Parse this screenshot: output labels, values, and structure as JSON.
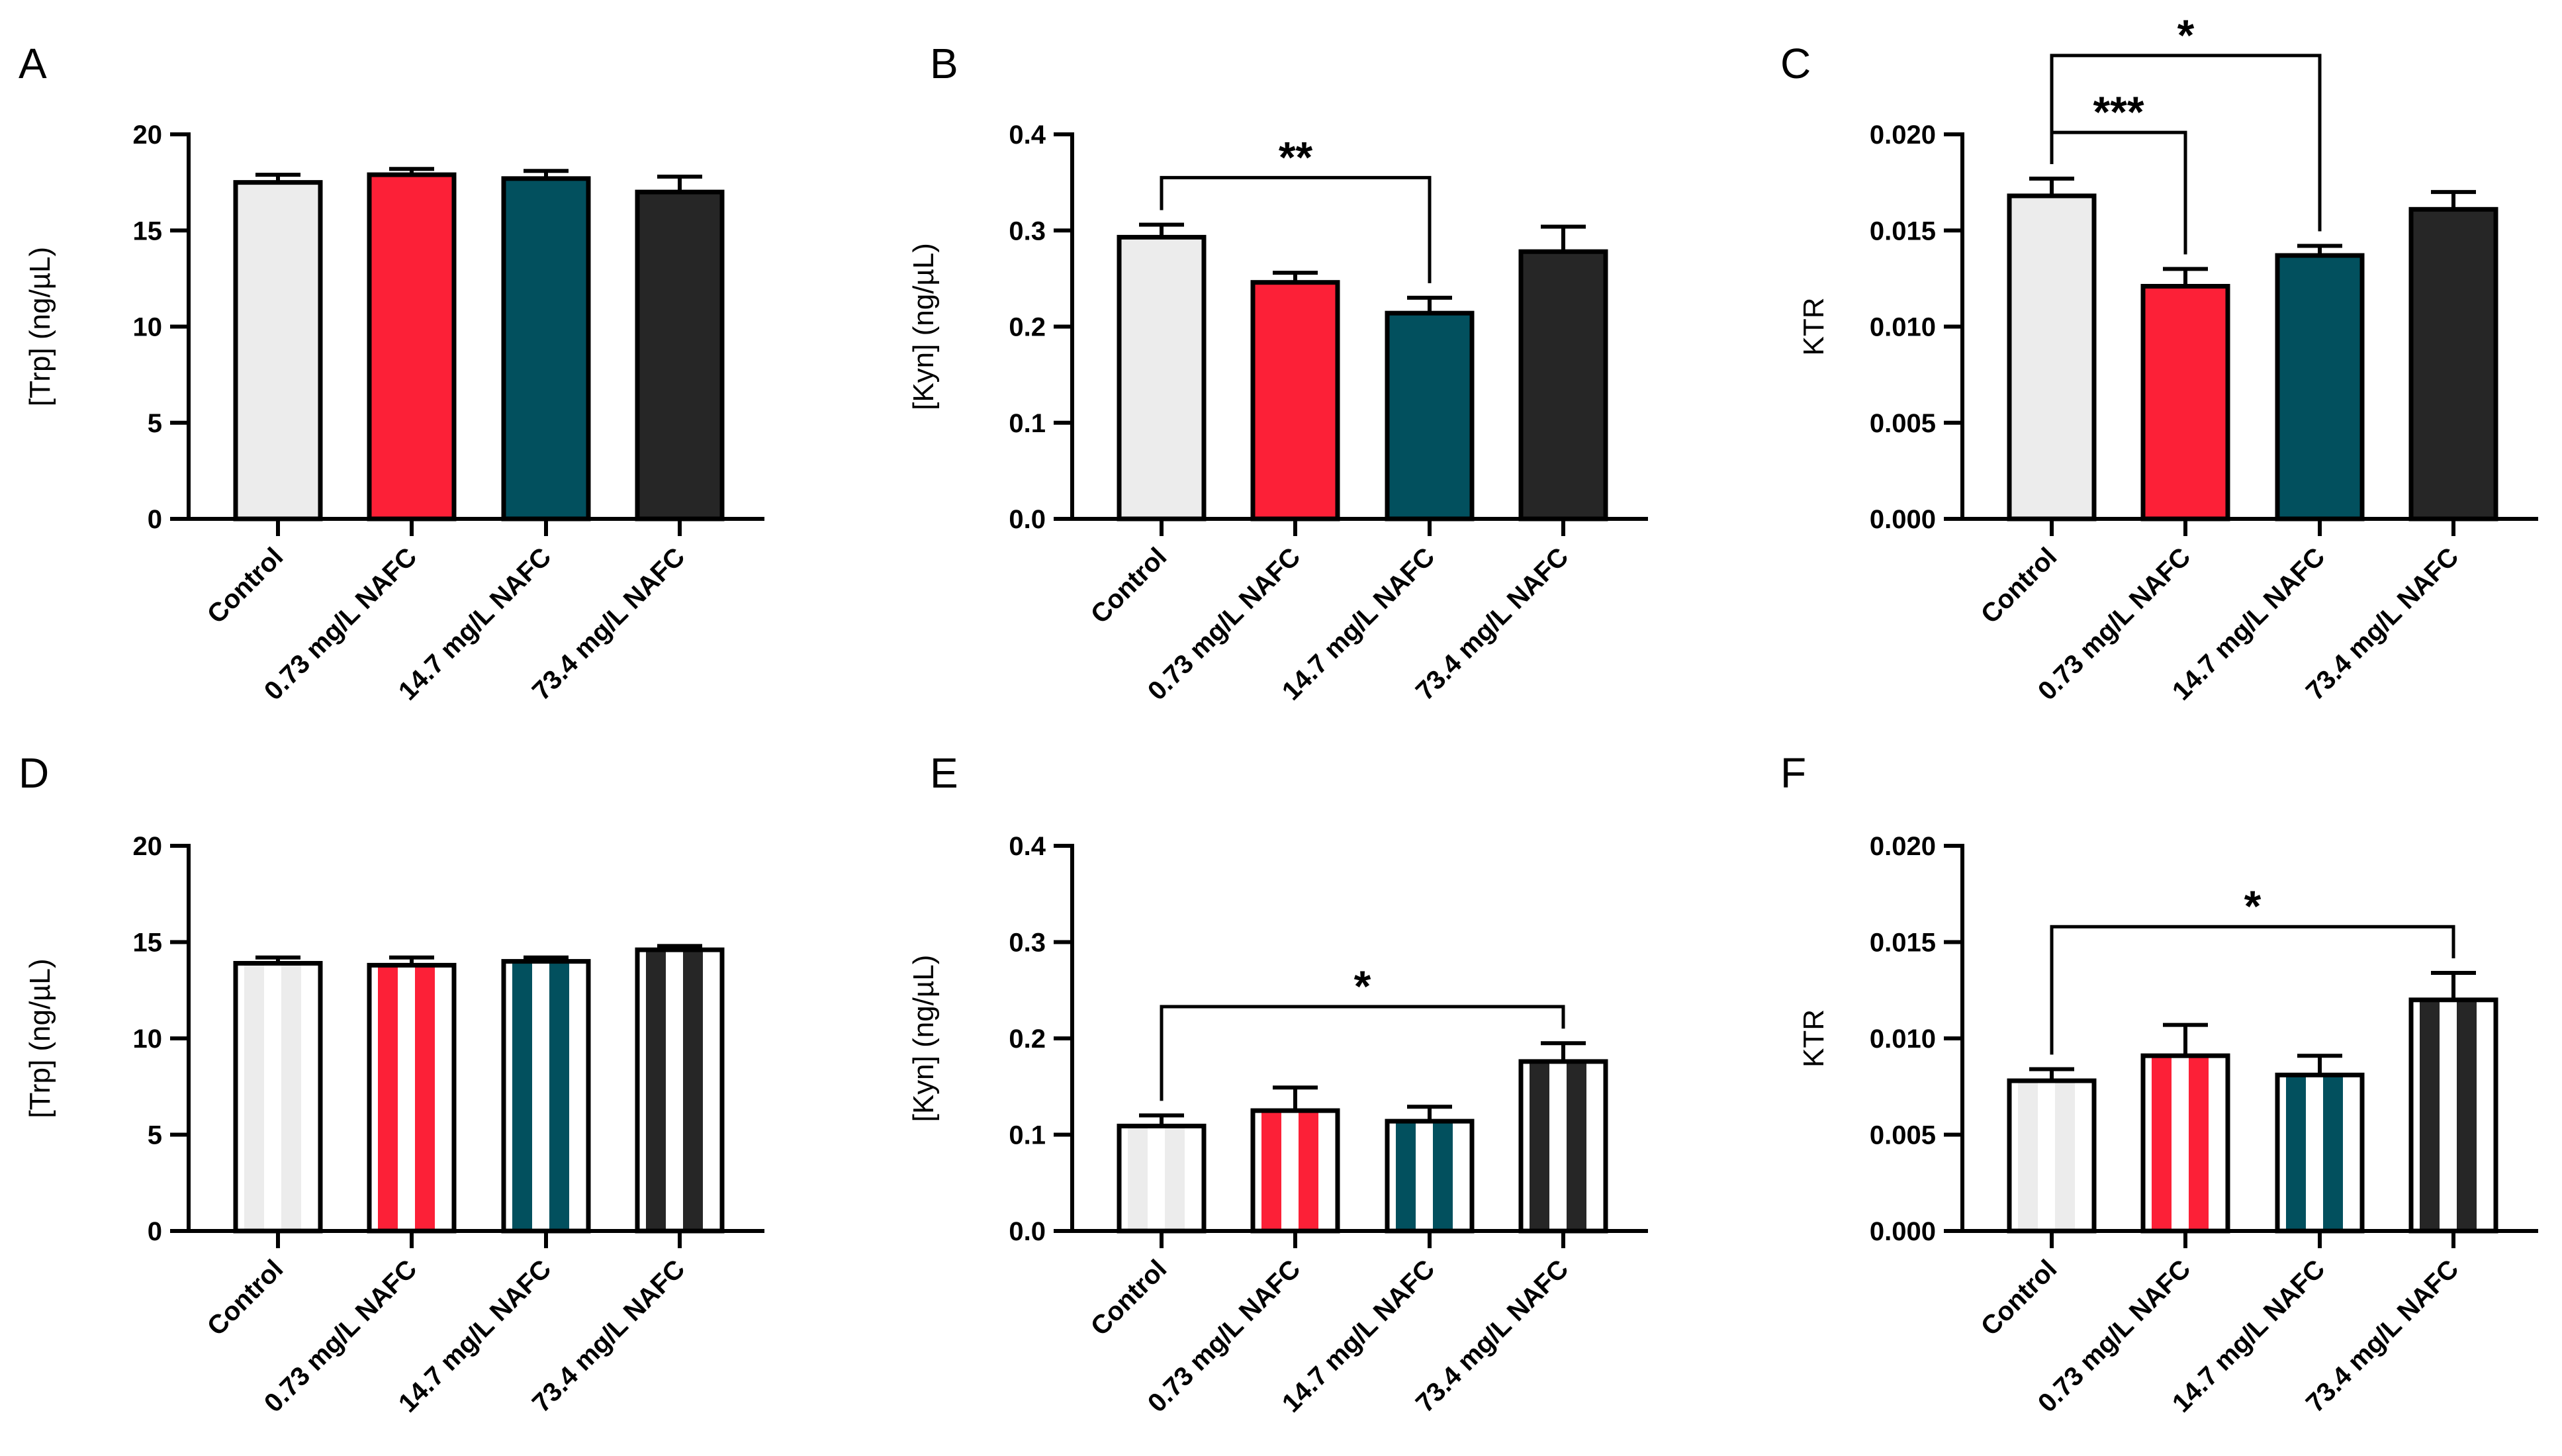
{
  "figure": {
    "categories": [
      "Control",
      "0.73 mg/L NAFC",
      "14.7 mg/L NAFC",
      "73.4 mg/L NAFC"
    ],
    "colors": {
      "Control": "#ececec",
      "0.73 mg/L NAFC": "#fc2037",
      "14.7 mg/L NAFC": "#02505e",
      "73.4 mg/L NAFC": "#262626"
    }
  },
  "chart_data": [
    {
      "panel": "A",
      "type": "bar",
      "pattern": "solid",
      "title": "",
      "xlabel": "",
      "ylabel": "[Trp] (ng/µL)",
      "ylim": [
        0,
        20
      ],
      "yticks": [
        0,
        5,
        10,
        15,
        20
      ],
      "tick_decimals": 0,
      "categories": [
        "Control",
        "0.73 mg/L NAFC",
        "14.7 mg/L NAFC",
        "73.4 mg/L NAFC"
      ],
      "values": [
        17.5,
        17.9,
        17.7,
        17.0
      ],
      "errors": [
        0.4,
        0.3,
        0.4,
        0.8
      ],
      "significance": []
    },
    {
      "panel": "B",
      "type": "bar",
      "pattern": "solid",
      "title": "",
      "xlabel": "",
      "ylabel": "[Kyn] (ng/µL)",
      "ylim": [
        0,
        0.4
      ],
      "yticks": [
        0.0,
        0.1,
        0.2,
        0.3,
        0.4
      ],
      "tick_decimals": 1,
      "categories": [
        "Control",
        "0.73 mg/L NAFC",
        "14.7 mg/L NAFC",
        "73.4 mg/L NAFC"
      ],
      "values": [
        0.293,
        0.246,
        0.214,
        0.278
      ],
      "errors": [
        0.013,
        0.01,
        0.016,
        0.026
      ],
      "significance": [
        {
          "from": 0,
          "to": 2,
          "label": "**",
          "y": 0.355
        }
      ]
    },
    {
      "panel": "C",
      "type": "bar",
      "pattern": "solid",
      "title": "",
      "xlabel": "",
      "ylabel": "KTR",
      "ylim": [
        0,
        0.02
      ],
      "yticks": [
        0.0,
        0.005,
        0.01,
        0.015,
        0.02
      ],
      "tick_decimals": 3,
      "categories": [
        "Control",
        "0.73 mg/L NAFC",
        "14.7 mg/L NAFC",
        "73.4 mg/L NAFC"
      ],
      "values": [
        0.0168,
        0.0121,
        0.0137,
        0.0161
      ],
      "errors": [
        0.0009,
        0.0009,
        0.0005,
        0.0009
      ],
      "significance": [
        {
          "from": 0,
          "to": 1,
          "label": "***",
          "y": 0.0201
        },
        {
          "from": 0,
          "to": 2,
          "label": "*",
          "y": 0.0241
        }
      ]
    },
    {
      "panel": "D",
      "type": "bar",
      "pattern": "striped",
      "title": "",
      "xlabel": "",
      "ylabel": "[Trp] (ng/µL)",
      "ylim": [
        0,
        20
      ],
      "yticks": [
        0,
        5,
        10,
        15,
        20
      ],
      "tick_decimals": 0,
      "categories": [
        "Control",
        "0.73 mg/L NAFC",
        "14.7 mg/L NAFC",
        "73.4 mg/L NAFC"
      ],
      "values": [
        13.9,
        13.8,
        14.0,
        14.6
      ],
      "errors": [
        0.3,
        0.4,
        0.2,
        0.2
      ],
      "significance": []
    },
    {
      "panel": "E",
      "type": "bar",
      "pattern": "striped",
      "title": "",
      "xlabel": "",
      "ylabel": "[Kyn] (ng/µL)",
      "ylim": [
        0,
        0.4
      ],
      "yticks": [
        0.0,
        0.1,
        0.2,
        0.3,
        0.4
      ],
      "tick_decimals": 1,
      "categories": [
        "Control",
        "0.73 mg/L NAFC",
        "14.7 mg/L NAFC",
        "73.4 mg/L NAFC"
      ],
      "values": [
        0.109,
        0.125,
        0.114,
        0.176
      ],
      "errors": [
        0.011,
        0.024,
        0.015,
        0.019
      ],
      "significance": [
        {
          "from": 0,
          "to": 3,
          "label": "*",
          "y": 0.233
        }
      ]
    },
    {
      "panel": "F",
      "type": "bar",
      "pattern": "striped",
      "title": "",
      "xlabel": "",
      "ylabel": "KTR",
      "ylim": [
        0,
        0.02
      ],
      "yticks": [
        0.0,
        0.005,
        0.01,
        0.015,
        0.02
      ],
      "tick_decimals": 3,
      "categories": [
        "Control",
        "0.73 mg/L NAFC",
        "14.7 mg/L NAFC",
        "73.4 mg/L NAFC"
      ],
      "values": [
        0.0078,
        0.0091,
        0.0081,
        0.012
      ],
      "errors": [
        0.0006,
        0.0016,
        0.001,
        0.0014
      ],
      "significance": [
        {
          "from": 0,
          "to": 3,
          "label": "*",
          "y": 0.0158
        }
      ]
    }
  ]
}
